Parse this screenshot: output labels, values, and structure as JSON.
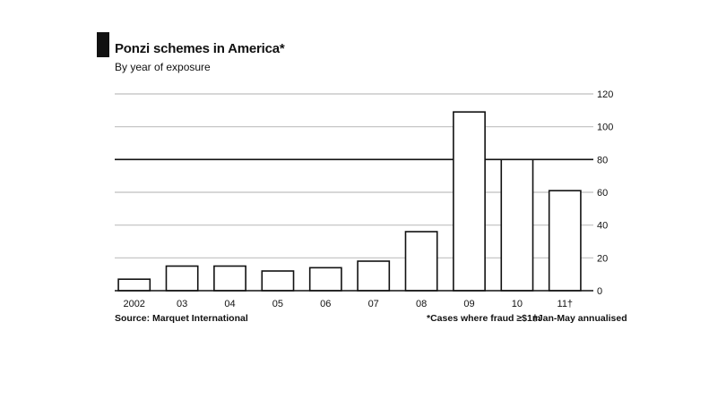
{
  "header": {
    "title": "Ponzi schemes in America*",
    "subtitle": "By year of exposure"
  },
  "footer": {
    "source": "Source: Marquet International",
    "footnote_star": "*Cases where fraud ≥$1m",
    "footnote_dagger": "†Jan-May annualised"
  },
  "chart_data": {
    "type": "bar",
    "title": "Ponzi schemes in America*",
    "subtitle": "By year of exposure",
    "categories": [
      "2002",
      "03",
      "04",
      "05",
      "06",
      "07",
      "08",
      "09",
      "10",
      "11†"
    ],
    "values": [
      7,
      15,
      15,
      12,
      14,
      18,
      36,
      109,
      80,
      61
    ],
    "ylim": [
      0,
      120
    ],
    "yticks": [
      0,
      20,
      40,
      60,
      80,
      100,
      120
    ],
    "y_axis_side": "right",
    "highlight_gridline": 80,
    "grid": true,
    "xlabel": "",
    "ylabel": ""
  },
  "colors": {
    "bar_fill": "#ffffff",
    "bar_stroke": "#111111",
    "grid": "#bfbfbf",
    "highlight_grid": "#111111"
  }
}
